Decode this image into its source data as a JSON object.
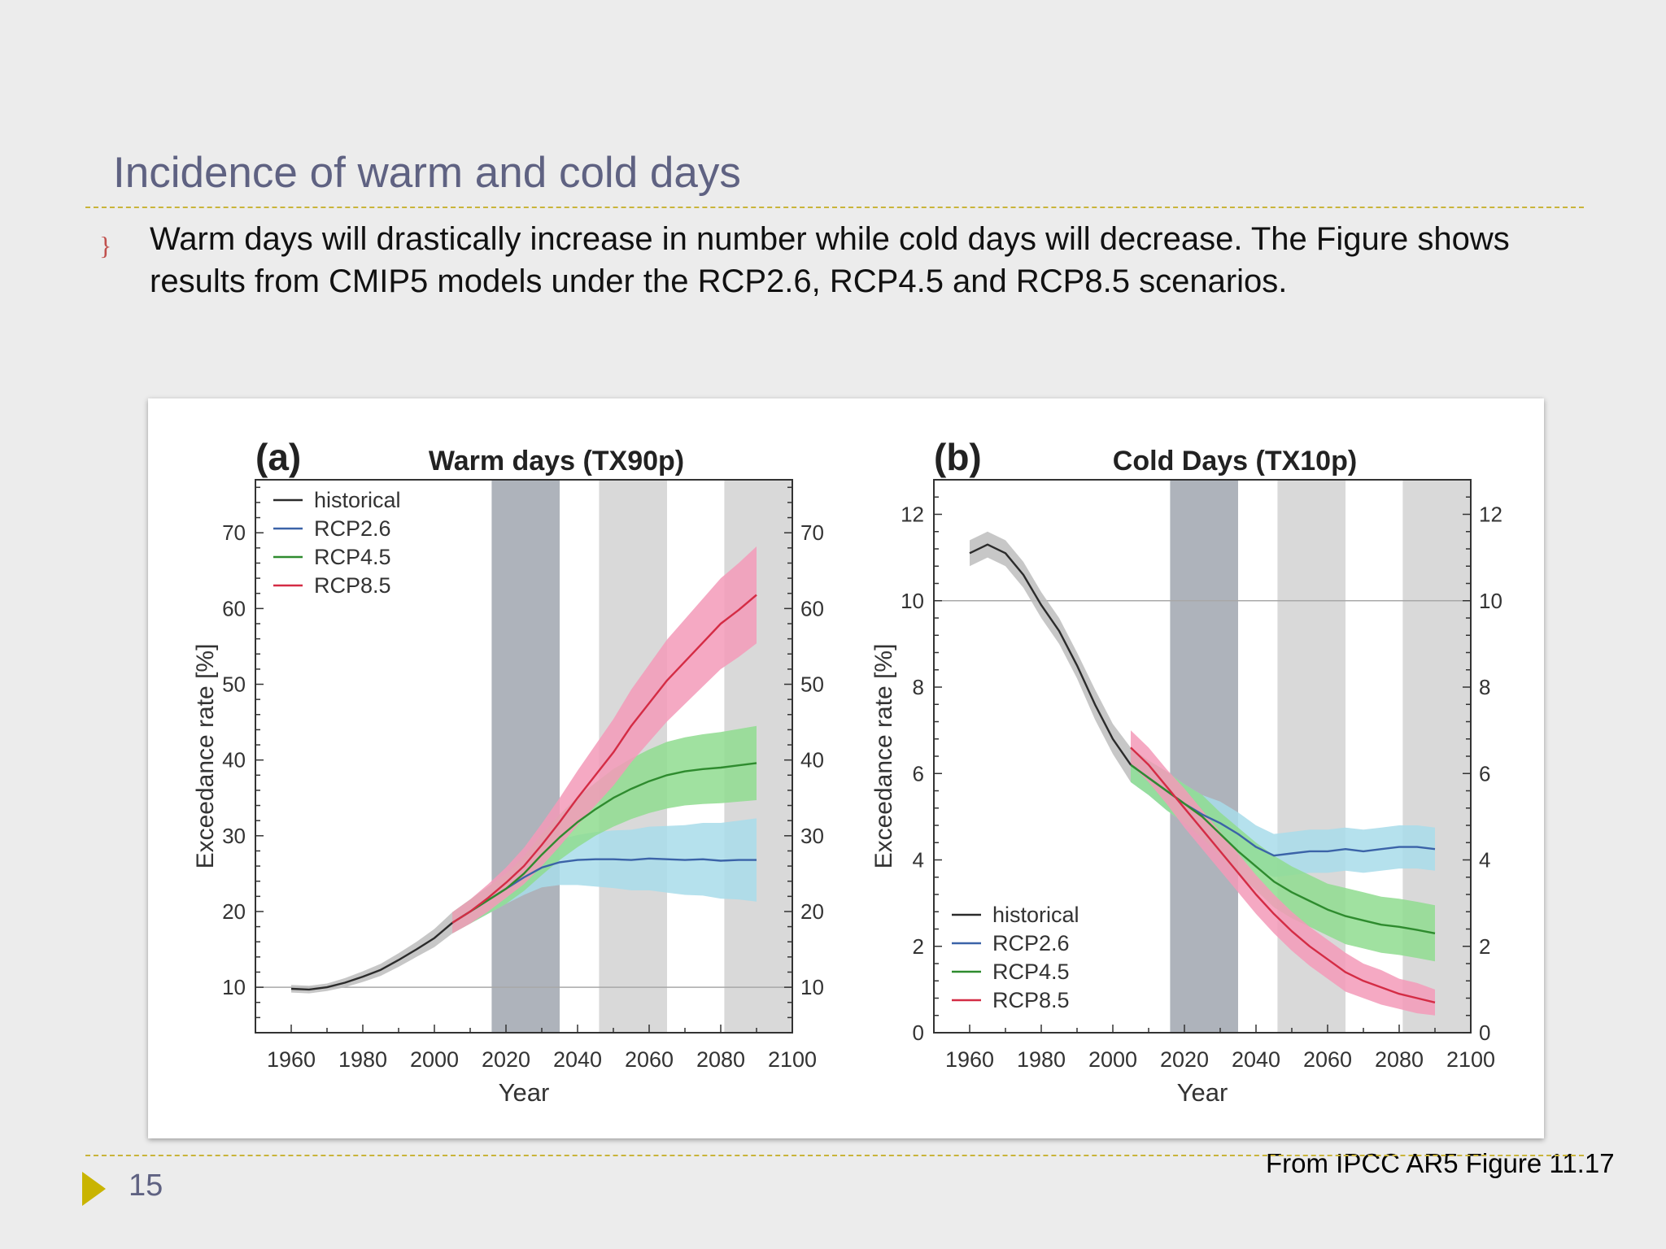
{
  "slide": {
    "title": "Incidence of warm and cold days",
    "bullet_marker": "}",
    "bullet_text": "Warm days will drastically increase in number while cold days will decrease. The Figure shows results from CMIP5 models under the RCP2.6, RCP4.5 and RCP8.5 scenarios.",
    "caption": "From IPCC AR5 Figure 11.17",
    "page_number": "15"
  },
  "colors": {
    "historical": "#2b2b2b",
    "RCP2.6": "#3b63a8",
    "RCP4.5": "#2e8b2e",
    "RCP8.5": "#d42c45",
    "RCP2.6_band": "#a8dcea",
    "RCP4.5_band": "#8fdc8f",
    "RCP8.5_band": "#f39ab8",
    "historical_band": "#bdbdbd",
    "title_text": "#5f6282",
    "rule_dash": "#c9b43a",
    "page_arrow": "#c9b400"
  },
  "chart_data": [
    {
      "type": "line",
      "panel_label": "(a)",
      "title": "Warm days (TX90p)",
      "xlabel": "Year",
      "ylabel": "Exceedance rate [%]",
      "xlim": [
        1950,
        2100
      ],
      "ylim": [
        4,
        77
      ],
      "xticks": [
        1960,
        1980,
        2000,
        2020,
        2040,
        2060,
        2080,
        2100
      ],
      "yticks": [
        10,
        20,
        30,
        40,
        50,
        60,
        70
      ],
      "reference_line": 10,
      "shaded_periods": [
        {
          "from": 2016,
          "to": 2035,
          "shade": "dark"
        },
        {
          "from": 2046,
          "to": 2065,
          "shade": "light"
        },
        {
          "from": 2081,
          "to": 2100,
          "shade": "light"
        }
      ],
      "legend": {
        "position": "top-left",
        "entries": [
          "historical",
          "RCP2.6",
          "RCP4.5",
          "RCP8.5"
        ]
      },
      "series": [
        {
          "name": "historical",
          "x": [
            1960,
            1965,
            1970,
            1975,
            1980,
            1985,
            1990,
            1995,
            2000,
            2005
          ],
          "y": [
            9.8,
            9.7,
            10.0,
            10.6,
            11.4,
            12.3,
            13.6,
            15.0,
            16.5,
            18.5
          ],
          "band": [
            0.5,
            0.5,
            0.5,
            0.6,
            0.7,
            0.8,
            0.9,
            1.0,
            1.2,
            1.4
          ]
        },
        {
          "name": "RCP2.6",
          "x": [
            2005,
            2010,
            2015,
            2020,
            2025,
            2030,
            2035,
            2040,
            2045,
            2050,
            2055,
            2060,
            2065,
            2070,
            2075,
            2080,
            2085,
            2090
          ],
          "y": [
            18.5,
            20.0,
            21.5,
            23.0,
            24.5,
            25.8,
            26.5,
            26.8,
            26.9,
            26.9,
            26.8,
            27.0,
            26.9,
            26.8,
            26.9,
            26.7,
            26.8,
            26.8
          ],
          "band": [
            1.4,
            1.6,
            1.8,
            2.0,
            2.3,
            2.6,
            3.0,
            3.3,
            3.6,
            3.8,
            4.0,
            4.2,
            4.4,
            4.6,
            4.8,
            5.0,
            5.2,
            5.5
          ]
        },
        {
          "name": "RCP4.5",
          "x": [
            2005,
            2010,
            2015,
            2020,
            2025,
            2030,
            2035,
            2040,
            2045,
            2050,
            2055,
            2060,
            2065,
            2070,
            2075,
            2080,
            2085,
            2090
          ],
          "y": [
            18.5,
            20.0,
            21.5,
            23.0,
            25.0,
            27.5,
            29.8,
            31.8,
            33.5,
            35.0,
            36.2,
            37.2,
            38.0,
            38.5,
            38.8,
            39.0,
            39.3,
            39.6
          ],
          "band": [
            1.4,
            1.6,
            1.8,
            2.0,
            2.3,
            2.7,
            3.0,
            3.3,
            3.5,
            3.8,
            4.0,
            4.2,
            4.4,
            4.5,
            4.6,
            4.7,
            4.8,
            4.9
          ]
        },
        {
          "name": "RCP8.5",
          "x": [
            2005,
            2010,
            2015,
            2020,
            2025,
            2030,
            2035,
            2040,
            2045,
            2050,
            2055,
            2060,
            2065,
            2070,
            2075,
            2080,
            2085,
            2090
          ],
          "y": [
            18.5,
            20.0,
            21.8,
            23.8,
            26.0,
            28.8,
            31.8,
            35.0,
            38.0,
            41.0,
            44.5,
            47.5,
            50.5,
            53.0,
            55.5,
            58.0,
            59.8,
            61.8
          ],
          "band": [
            1.4,
            1.6,
            1.8,
            2.0,
            2.4,
            2.8,
            3.2,
            3.6,
            4.0,
            4.4,
            4.8,
            5.1,
            5.4,
            5.6,
            5.8,
            6.0,
            6.2,
            6.4
          ]
        }
      ]
    },
    {
      "type": "line",
      "panel_label": "(b)",
      "title": "Cold Days (TX10p)",
      "xlabel": "Year",
      "ylabel": "Exceedance rate [%]",
      "xlim": [
        1950,
        2100
      ],
      "ylim": [
        0,
        12.8
      ],
      "xticks": [
        1960,
        1980,
        2000,
        2020,
        2040,
        2060,
        2080,
        2100
      ],
      "yticks": [
        0,
        2,
        4,
        6,
        8,
        10,
        12
      ],
      "reference_line": 10,
      "shaded_periods": [
        {
          "from": 2016,
          "to": 2035,
          "shade": "dark"
        },
        {
          "from": 2046,
          "to": 2065,
          "shade": "light"
        },
        {
          "from": 2081,
          "to": 2100,
          "shade": "light"
        }
      ],
      "legend": {
        "position": "bottom-left",
        "entries": [
          "historical",
          "RCP2.6",
          "RCP4.5",
          "RCP8.5"
        ]
      },
      "series": [
        {
          "name": "historical",
          "x": [
            1960,
            1965,
            1970,
            1975,
            1980,
            1985,
            1990,
            1995,
            2000,
            2005
          ],
          "y": [
            11.1,
            11.3,
            11.1,
            10.6,
            9.9,
            9.3,
            8.5,
            7.6,
            6.8,
            6.2
          ],
          "band": [
            0.3,
            0.3,
            0.3,
            0.3,
            0.3,
            0.3,
            0.3,
            0.35,
            0.35,
            0.4
          ]
        },
        {
          "name": "RCP2.6",
          "x": [
            2005,
            2010,
            2015,
            2020,
            2025,
            2030,
            2035,
            2040,
            2045,
            2050,
            2055,
            2060,
            2065,
            2070,
            2075,
            2080,
            2085,
            2090
          ],
          "y": [
            6.2,
            5.9,
            5.6,
            5.3,
            5.05,
            4.85,
            4.6,
            4.3,
            4.1,
            4.15,
            4.2,
            4.2,
            4.25,
            4.2,
            4.25,
            4.3,
            4.3,
            4.25
          ],
          "band": [
            0.4,
            0.4,
            0.45,
            0.45,
            0.45,
            0.5,
            0.5,
            0.5,
            0.5,
            0.5,
            0.5,
            0.5,
            0.5,
            0.5,
            0.5,
            0.5,
            0.5,
            0.5
          ]
        },
        {
          "name": "RCP4.5",
          "x": [
            2005,
            2010,
            2015,
            2020,
            2025,
            2030,
            2035,
            2040,
            2045,
            2050,
            2055,
            2060,
            2065,
            2070,
            2075,
            2080,
            2085,
            2090
          ],
          "y": [
            6.2,
            5.9,
            5.6,
            5.3,
            5.0,
            4.6,
            4.2,
            3.85,
            3.5,
            3.25,
            3.05,
            2.85,
            2.7,
            2.6,
            2.5,
            2.45,
            2.38,
            2.3
          ],
          "band": [
            0.4,
            0.4,
            0.45,
            0.45,
            0.5,
            0.5,
            0.55,
            0.55,
            0.6,
            0.6,
            0.6,
            0.6,
            0.65,
            0.65,
            0.65,
            0.65,
            0.65,
            0.65
          ]
        },
        {
          "name": "RCP8.5",
          "x": [
            2005,
            2010,
            2015,
            2020,
            2025,
            2030,
            2035,
            2040,
            2045,
            2050,
            2055,
            2060,
            2065,
            2070,
            2075,
            2080,
            2085,
            2090
          ],
          "y": [
            6.6,
            6.2,
            5.7,
            5.2,
            4.7,
            4.2,
            3.7,
            3.2,
            2.75,
            2.35,
            2.0,
            1.7,
            1.4,
            1.2,
            1.05,
            0.9,
            0.8,
            0.7
          ],
          "band": [
            0.4,
            0.4,
            0.4,
            0.45,
            0.45,
            0.45,
            0.45,
            0.45,
            0.45,
            0.45,
            0.45,
            0.45,
            0.45,
            0.4,
            0.4,
            0.35,
            0.35,
            0.3
          ]
        }
      ]
    }
  ]
}
